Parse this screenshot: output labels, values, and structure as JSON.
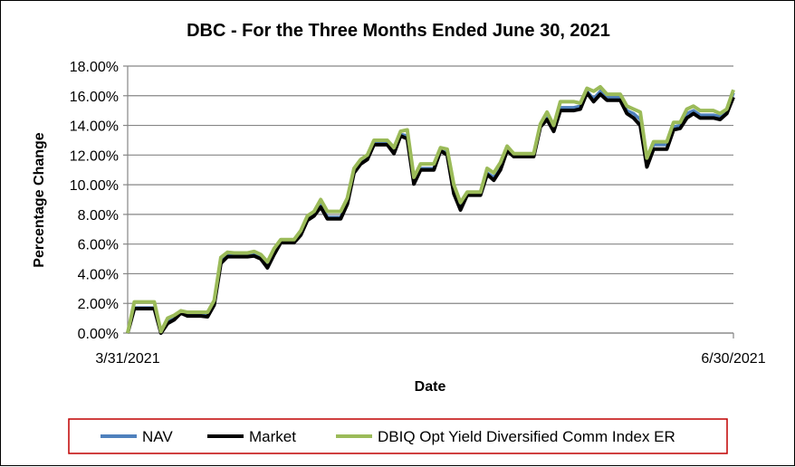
{
  "chart_data": {
    "type": "line",
    "title": "DBC - For the Three Months Ended June 30, 2021",
    "xlabel": "Date",
    "ylabel": "Percentage Change",
    "x_tick_labels": [
      "3/31/2021",
      "6/30/2021"
    ],
    "y_tick_labels": [
      "0.00%",
      "2.00%",
      "4.00%",
      "6.00%",
      "8.00%",
      "10.00%",
      "12.00%",
      "14.00%",
      "16.00%",
      "18.00%"
    ],
    "ylim": [
      0,
      18
    ],
    "grid": "horizontal",
    "legend_position": "bottom",
    "series": [
      {
        "name": "NAV",
        "color": "#4F81BD",
        "values": [
          0.0,
          1.7,
          1.7,
          1.7,
          1.7,
          0.0,
          0.8,
          1.0,
          1.4,
          1.2,
          1.2,
          1.2,
          1.2,
          2.0,
          4.8,
          5.3,
          5.3,
          5.3,
          5.3,
          5.35,
          5.1,
          4.55,
          5.45,
          6.2,
          6.2,
          6.2,
          6.7,
          7.7,
          8.0,
          8.7,
          7.8,
          7.8,
          7.8,
          8.8,
          10.9,
          11.5,
          11.8,
          12.8,
          12.8,
          12.8,
          12.2,
          13.4,
          13.3,
          10.2,
          11.1,
          11.1,
          11.1,
          12.4,
          12.2,
          9.6,
          8.5,
          9.4,
          9.4,
          9.4,
          10.8,
          10.5,
          11.2,
          12.4,
          12.0,
          12.0,
          12.0,
          12.0,
          14.0,
          14.6,
          13.8,
          15.2,
          15.2,
          15.2,
          15.3,
          16.3,
          15.8,
          16.3,
          15.9,
          15.9,
          15.9,
          15.0,
          14.8,
          14.4,
          11.5,
          12.7,
          12.7,
          12.7,
          13.9,
          14.0,
          14.8,
          15.0,
          14.7,
          14.7,
          14.7,
          14.6,
          14.9,
          16.2
        ]
      },
      {
        "name": "Market",
        "color": "#000000",
        "values": [
          0.0,
          1.65,
          1.65,
          1.65,
          1.65,
          0.0,
          0.65,
          0.9,
          1.35,
          1.15,
          1.15,
          1.15,
          1.1,
          1.9,
          4.7,
          5.15,
          5.15,
          5.15,
          5.15,
          5.2,
          5.0,
          4.4,
          5.3,
          6.1,
          6.1,
          6.1,
          6.6,
          7.6,
          7.9,
          8.5,
          7.7,
          7.7,
          7.7,
          8.7,
          10.8,
          11.4,
          11.7,
          12.7,
          12.7,
          12.7,
          12.1,
          13.3,
          13.1,
          10.05,
          11.0,
          11.0,
          11.0,
          12.3,
          12.0,
          9.4,
          8.3,
          9.3,
          9.3,
          9.3,
          10.7,
          10.3,
          11.0,
          12.3,
          11.9,
          11.9,
          11.9,
          11.9,
          13.9,
          14.4,
          13.6,
          15.0,
          15.0,
          15.0,
          15.1,
          16.2,
          15.6,
          16.1,
          15.7,
          15.7,
          15.7,
          14.8,
          14.5,
          14.0,
          11.2,
          12.4,
          12.4,
          12.4,
          13.7,
          13.8,
          14.5,
          14.8,
          14.5,
          14.5,
          14.5,
          14.4,
          14.8,
          15.9
        ]
      },
      {
        "name": "DBIQ Opt Yield Diversified Comm Index ER",
        "color": "#9BBB59",
        "values": [
          0.0,
          2.1,
          2.1,
          2.1,
          2.1,
          0.1,
          1.0,
          1.2,
          1.5,
          1.4,
          1.4,
          1.4,
          1.4,
          2.2,
          5.1,
          5.45,
          5.4,
          5.4,
          5.4,
          5.5,
          5.3,
          4.8,
          5.7,
          6.3,
          6.3,
          6.3,
          6.9,
          7.9,
          8.2,
          9.0,
          8.2,
          8.2,
          8.2,
          9.1,
          11.1,
          11.7,
          12.0,
          13.0,
          13.0,
          13.0,
          12.5,
          13.6,
          13.7,
          10.5,
          11.4,
          11.4,
          11.4,
          12.5,
          12.4,
          10.0,
          8.8,
          9.5,
          9.5,
          9.5,
          11.1,
          10.8,
          11.5,
          12.6,
          12.1,
          12.1,
          12.1,
          12.1,
          14.1,
          14.9,
          14.0,
          15.6,
          15.6,
          15.6,
          15.5,
          16.5,
          16.3,
          16.6,
          16.1,
          16.1,
          16.1,
          15.3,
          15.1,
          14.9,
          11.8,
          12.9,
          12.9,
          12.9,
          14.2,
          14.2,
          15.1,
          15.3,
          15.0,
          15.0,
          15.0,
          14.8,
          15.1,
          16.4
        ]
      }
    ]
  }
}
